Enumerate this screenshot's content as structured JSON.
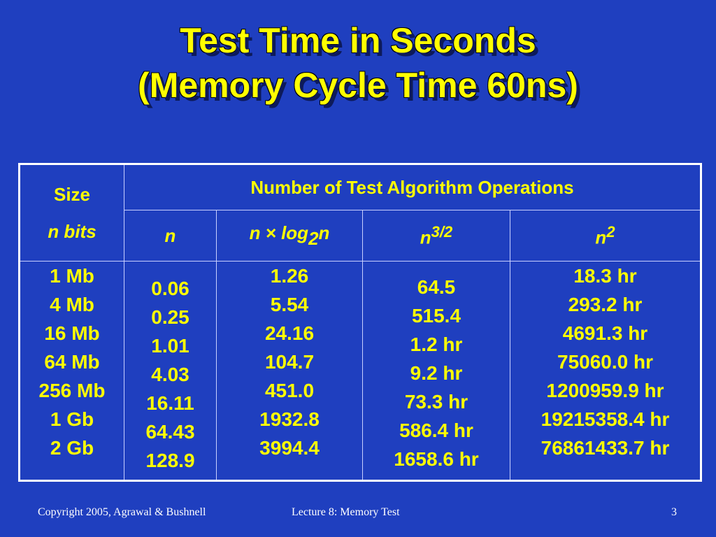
{
  "slide": {
    "title_line1": "Test Time in Seconds",
    "title_line2": "(Memory Cycle Time 60ns)"
  },
  "table": {
    "size_header": "Size",
    "ops_header": "Number of Test Algorithm Operations",
    "size_unit": "n bits",
    "columns": {
      "n": "n",
      "nlogn_prefix": "n × log",
      "nlogn_sub": "2",
      "nlogn_suffix": "n",
      "n32_base": "n",
      "n32_exp": "3/2",
      "n2_base": "n",
      "n2_exp": "2"
    },
    "sizes": [
      "1 Mb",
      "4 Mb",
      "16 Mb",
      "64 Mb",
      "256 Mb",
      "1 Gb",
      "2 Gb"
    ],
    "n": [
      "0.06",
      "0.25",
      "1.01",
      "4.03",
      "16.11",
      "64.43",
      "128.9"
    ],
    "nlogn": [
      "1.26",
      "5.54",
      "24.16",
      "104.7",
      "451.0",
      "1932.8",
      "3994.4"
    ],
    "n32": [
      "64.5",
      "515.4",
      "1.2 hr",
      "9.2 hr",
      "73.3 hr",
      "586.4 hr",
      "1658.6 hr"
    ],
    "n2": [
      "18.3 hr",
      "293.2 hr",
      "4691.3 hr",
      "75060.0 hr",
      "1200959.9 hr",
      "19215358.4 hr",
      "76861433.7 hr"
    ]
  },
  "footer": {
    "copyright": "Copyright 2005, Agrawal & Bushnell",
    "lecture": "Lecture 8: Memory Test",
    "page_number": "3"
  },
  "colors": {
    "background": "#1f3fbf",
    "text_accent": "#ffff00",
    "footer_text": "#ffffff"
  }
}
